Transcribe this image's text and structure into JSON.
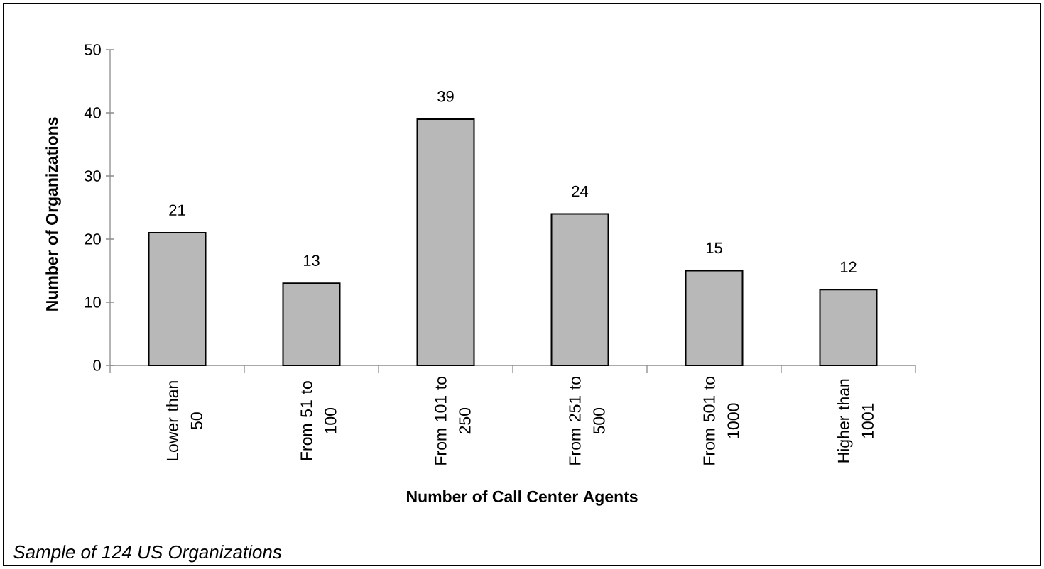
{
  "chart_data": {
    "type": "bar",
    "xlabel": "Number of Call Center Agents",
    "ylabel": "Number of Organizations",
    "categories": [
      "Lower than 50",
      "From 51 to 100",
      "From 101 to 250",
      "From 251 to 500",
      "From 501 to 1000",
      "Higher than 1001"
    ],
    "values": [
      21,
      13,
      39,
      24,
      15,
      12
    ],
    "color": "#b8b8b8",
    "ylim": [
      0,
      50
    ],
    "yticks": [
      0,
      10,
      20,
      30,
      40,
      50
    ],
    "data_labels": true,
    "annotations": [
      "Sample of 124 US Organizations"
    ]
  }
}
